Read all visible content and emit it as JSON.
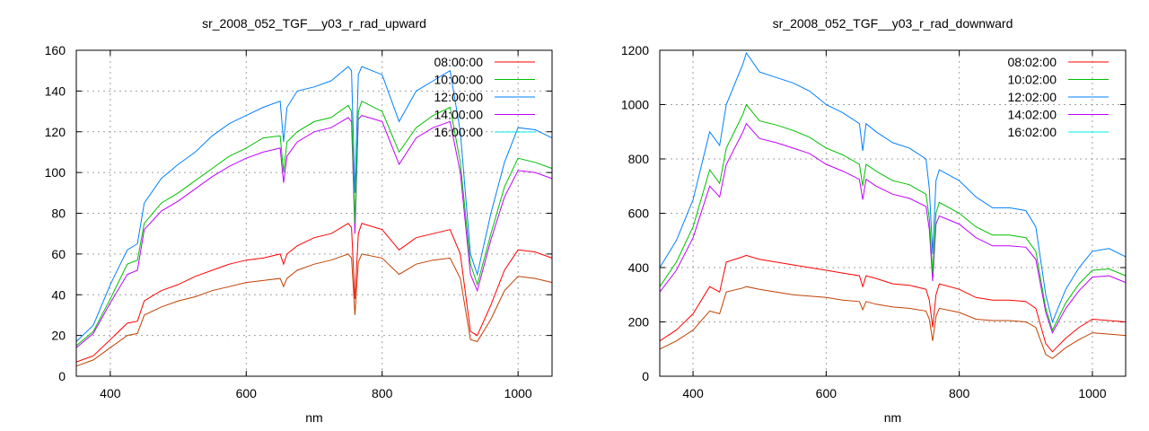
{
  "chart_data": [
    {
      "type": "line",
      "title": "sr_2008_052_TGF__y03_r_rad_upward",
      "xlabel": "nm",
      "ylabel": "",
      "xlim": [
        350,
        1050
      ],
      "ylim": [
        0,
        160
      ],
      "xticks": [
        400,
        600,
        800,
        1000
      ],
      "yticks": [
        0,
        20,
        40,
        60,
        80,
        100,
        120,
        140,
        160
      ],
      "grid": true,
      "legend_position": "top-right",
      "legend": [
        {
          "name": "08:00:00",
          "color": "#ff0000"
        },
        {
          "name": "10:00:00",
          "color": "#00c000"
        },
        {
          "name": "12:00:00",
          "color": "#0080ff"
        },
        {
          "name": "14:00:00",
          "color": "#c000ff"
        },
        {
          "name": "16:00:00",
          "color": "#00eeee"
        }
      ],
      "x": [
        350,
        375,
        400,
        425,
        440,
        450,
        475,
        500,
        525,
        550,
        575,
        600,
        625,
        650,
        655,
        660,
        675,
        700,
        725,
        750,
        755,
        760,
        765,
        770,
        800,
        825,
        850,
        875,
        900,
        915,
        930,
        940,
        960,
        980,
        1000,
        1025,
        1050
      ],
      "series": [
        {
          "name": "unlabeled",
          "color": "#c04000",
          "values": [
            5,
            8,
            14,
            20,
            21,
            30,
            34,
            37,
            39,
            42,
            44,
            46,
            47,
            48,
            44,
            48,
            52,
            55,
            57,
            60,
            58,
            30,
            56,
            60,
            58,
            50,
            55,
            57,
            58,
            48,
            18,
            17,
            28,
            42,
            49,
            48,
            46
          ]
        },
        {
          "name": "08:00:00",
          "color": "#ff0000",
          "values": [
            7,
            10,
            18,
            26,
            27,
            37,
            42,
            45,
            49,
            52,
            55,
            57,
            58,
            60,
            55,
            60,
            64,
            68,
            70,
            75,
            73,
            38,
            70,
            75,
            72,
            62,
            68,
            70,
            72,
            60,
            22,
            20,
            35,
            52,
            62,
            61,
            58
          ]
        },
        {
          "name": "14:00:00",
          "color": "#c000ff",
          "values": [
            14,
            21,
            36,
            50,
            52,
            72,
            81,
            86,
            92,
            98,
            103,
            107,
            110,
            112,
            95,
            108,
            115,
            120,
            122,
            127,
            125,
            70,
            126,
            128,
            125,
            104,
            117,
            122,
            125,
            100,
            50,
            42,
            67,
            88,
            101,
            100,
            97
          ]
        },
        {
          "name": "10:00:00",
          "color": "#00c000",
          "values": [
            15,
            22,
            38,
            55,
            57,
            75,
            85,
            90,
            96,
            102,
            108,
            112,
            117,
            118,
            100,
            115,
            120,
            125,
            127,
            133,
            130,
            75,
            130,
            135,
            130,
            110,
            122,
            128,
            132,
            105,
            55,
            45,
            70,
            93,
            107,
            105,
            102
          ]
        },
        {
          "name": "12:00:00",
          "color": "#0080ff",
          "values": [
            17,
            25,
            45,
            62,
            65,
            85,
            97,
            104,
            110,
            118,
            124,
            128,
            132,
            135,
            115,
            132,
            140,
            142,
            145,
            152,
            150,
            90,
            148,
            152,
            148,
            125,
            140,
            145,
            150,
            120,
            60,
            50,
            80,
            105,
            122,
            121,
            117
          ]
        }
      ]
    },
    {
      "type": "line",
      "title": "sr_2008_052_TGF__y03_r_rad_downward",
      "xlabel": "nm",
      "ylabel": "",
      "xlim": [
        350,
        1050
      ],
      "ylim": [
        0,
        1200
      ],
      "xticks": [
        400,
        600,
        800,
        1000
      ],
      "yticks": [
        0,
        200,
        400,
        600,
        800,
        1000,
        1200
      ],
      "grid": true,
      "legend_position": "top-right",
      "legend": [
        {
          "name": "08:02:00",
          "color": "#ff0000"
        },
        {
          "name": "10:02:00",
          "color": "#00c000"
        },
        {
          "name": "12:02:00",
          "color": "#0080ff"
        },
        {
          "name": "14:02:00",
          "color": "#c000ff"
        },
        {
          "name": "16:02:00",
          "color": "#00eeee"
        }
      ],
      "x": [
        350,
        375,
        400,
        425,
        440,
        450,
        475,
        480,
        500,
        525,
        550,
        575,
        600,
        625,
        650,
        655,
        660,
        675,
        700,
        725,
        750,
        755,
        760,
        765,
        770,
        800,
        825,
        850,
        875,
        900,
        915,
        930,
        940,
        960,
        980,
        1000,
        1025,
        1050
      ],
      "series": [
        {
          "name": "unlabeled",
          "color": "#c04000",
          "values": [
            100,
            130,
            170,
            240,
            230,
            310,
            325,
            330,
            320,
            310,
            300,
            295,
            290,
            280,
            275,
            245,
            275,
            265,
            255,
            250,
            240,
            210,
            130,
            220,
            250,
            235,
            210,
            205,
            205,
            200,
            180,
            80,
            65,
            105,
            135,
            160,
            155,
            150
          ]
        },
        {
          "name": "08:02:00",
          "color": "#ff0000",
          "values": [
            130,
            170,
            230,
            330,
            310,
            420,
            440,
            445,
            430,
            420,
            410,
            400,
            390,
            380,
            370,
            330,
            370,
            360,
            340,
            335,
            320,
            280,
            180,
            300,
            340,
            320,
            290,
            280,
            280,
            275,
            250,
            120,
            90,
            140,
            180,
            210,
            205,
            200
          ]
        },
        {
          "name": "14:02:00",
          "color": "#c000ff",
          "values": [
            310,
            390,
            510,
            700,
            660,
            780,
            900,
            930,
            875,
            860,
            840,
            820,
            780,
            755,
            725,
            650,
            725,
            700,
            670,
            655,
            625,
            540,
            350,
            560,
            590,
            560,
            510,
            480,
            480,
            475,
            430,
            235,
            160,
            250,
            315,
            365,
            370,
            345
          ]
        },
        {
          "name": "10:02:00",
          "color": "#00c000",
          "values": [
            330,
            420,
            550,
            760,
            710,
            840,
            965,
            1000,
            940,
            925,
            905,
            880,
            840,
            815,
            780,
            700,
            780,
            755,
            720,
            705,
            670,
            580,
            380,
            600,
            640,
            600,
            550,
            520,
            520,
            510,
            460,
            250,
            170,
            270,
            340,
            390,
            395,
            370
          ]
        },
        {
          "name": "12:02:00",
          "color": "#0080ff",
          "values": [
            400,
            500,
            650,
            900,
            850,
            1000,
            1150,
            1190,
            1120,
            1100,
            1080,
            1050,
            1000,
            970,
            930,
            830,
            930,
            900,
            860,
            840,
            800,
            690,
            450,
            720,
            760,
            720,
            660,
            620,
            620,
            610,
            550,
            300,
            200,
            320,
            400,
            460,
            470,
            440
          ]
        }
      ]
    }
  ]
}
